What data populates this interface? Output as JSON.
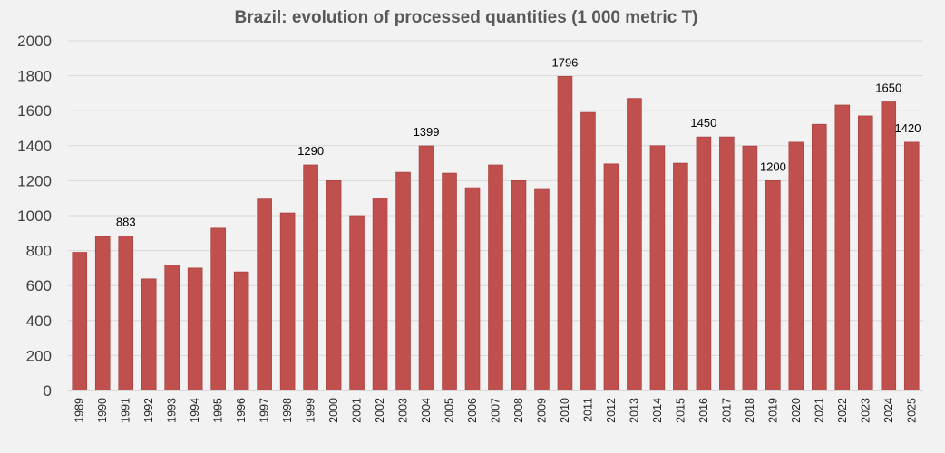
{
  "chart_data": {
    "type": "bar",
    "title": "Brazil: evolution of processed quantities (1 000 metric T)",
    "xlabel": "",
    "ylabel": "",
    "ylim": [
      0,
      2000
    ],
    "y_ticks": [
      0,
      200,
      400,
      600,
      800,
      1000,
      1200,
      1400,
      1600,
      1800,
      2000
    ],
    "grid": true,
    "legend": "none",
    "categories": [
      "1989",
      "1990",
      "1991",
      "1992",
      "1993",
      "1994",
      "1995",
      "1996",
      "1997",
      "1998",
      "1999",
      "2000",
      "2001",
      "2002",
      "2003",
      "2004",
      "2005",
      "2006",
      "2007",
      "2008",
      "2009",
      "2010",
      "2011",
      "2012",
      "2013",
      "2014",
      "2015",
      "2016",
      "2017",
      "2018",
      "2019",
      "2020",
      "2021",
      "2022",
      "2023",
      "2024",
      "2025"
    ],
    "values": [
      790,
      880,
      883,
      638,
      718,
      700,
      928,
      678,
      1095,
      1015,
      1290,
      1200,
      1000,
      1100,
      1248,
      1399,
      1243,
      1160,
      1290,
      1200,
      1150,
      1796,
      1590,
      1296,
      1670,
      1400,
      1300,
      1450,
      1450,
      1398,
      1200,
      1420,
      1522,
      1632,
      1570,
      1650,
      1420
    ],
    "data_labels": [
      {
        "category": "1991",
        "text": "883"
      },
      {
        "category": "1999",
        "text": "1290"
      },
      {
        "category": "2004",
        "text": "1399"
      },
      {
        "category": "2010",
        "text": "1796"
      },
      {
        "category": "2016",
        "text": "1450"
      },
      {
        "category": "2019",
        "text": "1200"
      },
      {
        "category": "2024",
        "text": "1650"
      },
      {
        "category": "2025",
        "text": "1420"
      }
    ],
    "colors": {
      "bar_fill": "#c0504d",
      "bar_stroke": "#a94441",
      "background": "#f2f2f2"
    }
  }
}
